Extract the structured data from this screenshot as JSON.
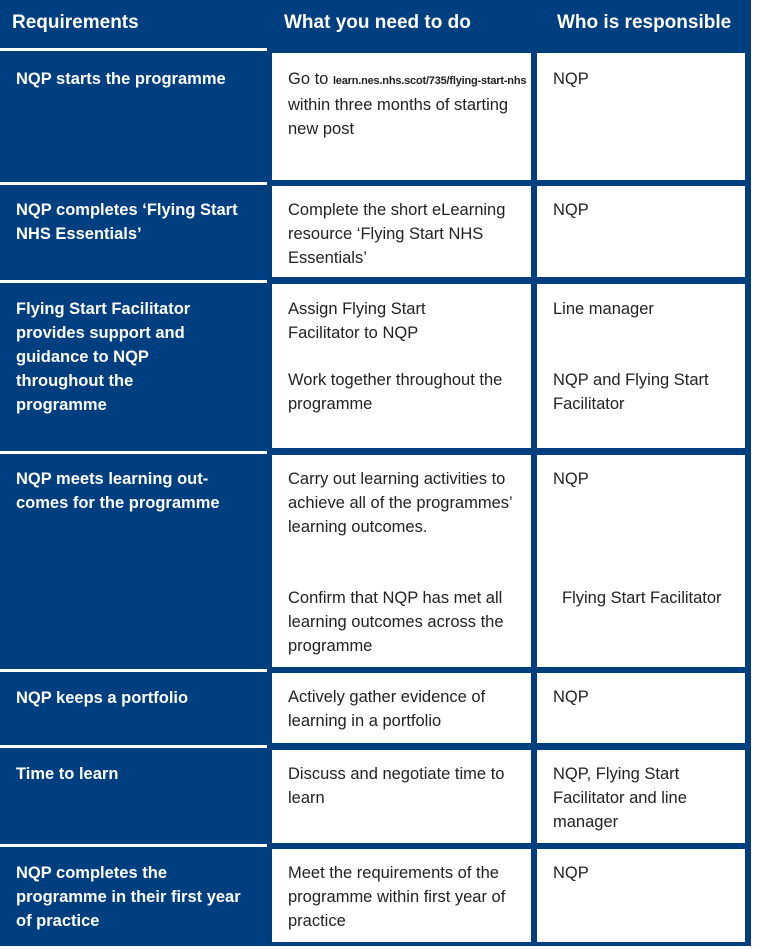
{
  "headers": {
    "requirements": "Requirements",
    "what": "What you need to do",
    "who": "Who is responsible"
  },
  "rows": [
    {
      "req": "NQP starts the programme",
      "what": [
        {
          "prefix": "Go to ",
          "link": "learn.nes.nhs.scot/735/flying-start-nhs",
          "text": "within three months of starting new post"
        }
      ],
      "who": [
        "NQP"
      ]
    },
    {
      "req": "NQP completes ‘Flying Start NHS Essentials’",
      "what": [
        "Complete the short eLearning resource ‘Flying Start NHS Essentials’"
      ],
      "who": [
        "NQP"
      ]
    },
    {
      "req": "Flying Start Facilitator provides support and guidance to NQP throughout the programme",
      "what": [
        "Assign Flying Start Facilitator to NQP",
        "Work together throughout the programme"
      ],
      "who": [
        "Line manager",
        "NQP and Flying Start Facilitator"
      ]
    },
    {
      "req": "NQP meets learning out-comes for the programme",
      "what": [
        "Carry out learning activities to achieve all of the programmes’ learning outcomes.",
        "Confirm that NQP has met all learning outcomes across the programme"
      ],
      "who": [
        "NQP",
        "Flying Start Facilitator"
      ]
    },
    {
      "req": "NQP keeps a portfolio",
      "what": [
        "Actively gather evidence of learning in a portfolio"
      ],
      "who": [
        "NQP"
      ]
    },
    {
      "req": "Time to learn",
      "what": [
        "Discuss and negotiate time to learn"
      ],
      "who": [
        "NQP, Flying Start Facilitator and line manager"
      ]
    },
    {
      "req": "NQP completes the programme in their first year of practice",
      "what": [
        "Meet the requirements of the programme within first year of practice"
      ],
      "who": [
        "NQP"
      ]
    }
  ],
  "colors": {
    "navy": "#003f7f",
    "white": "#ffffff"
  }
}
